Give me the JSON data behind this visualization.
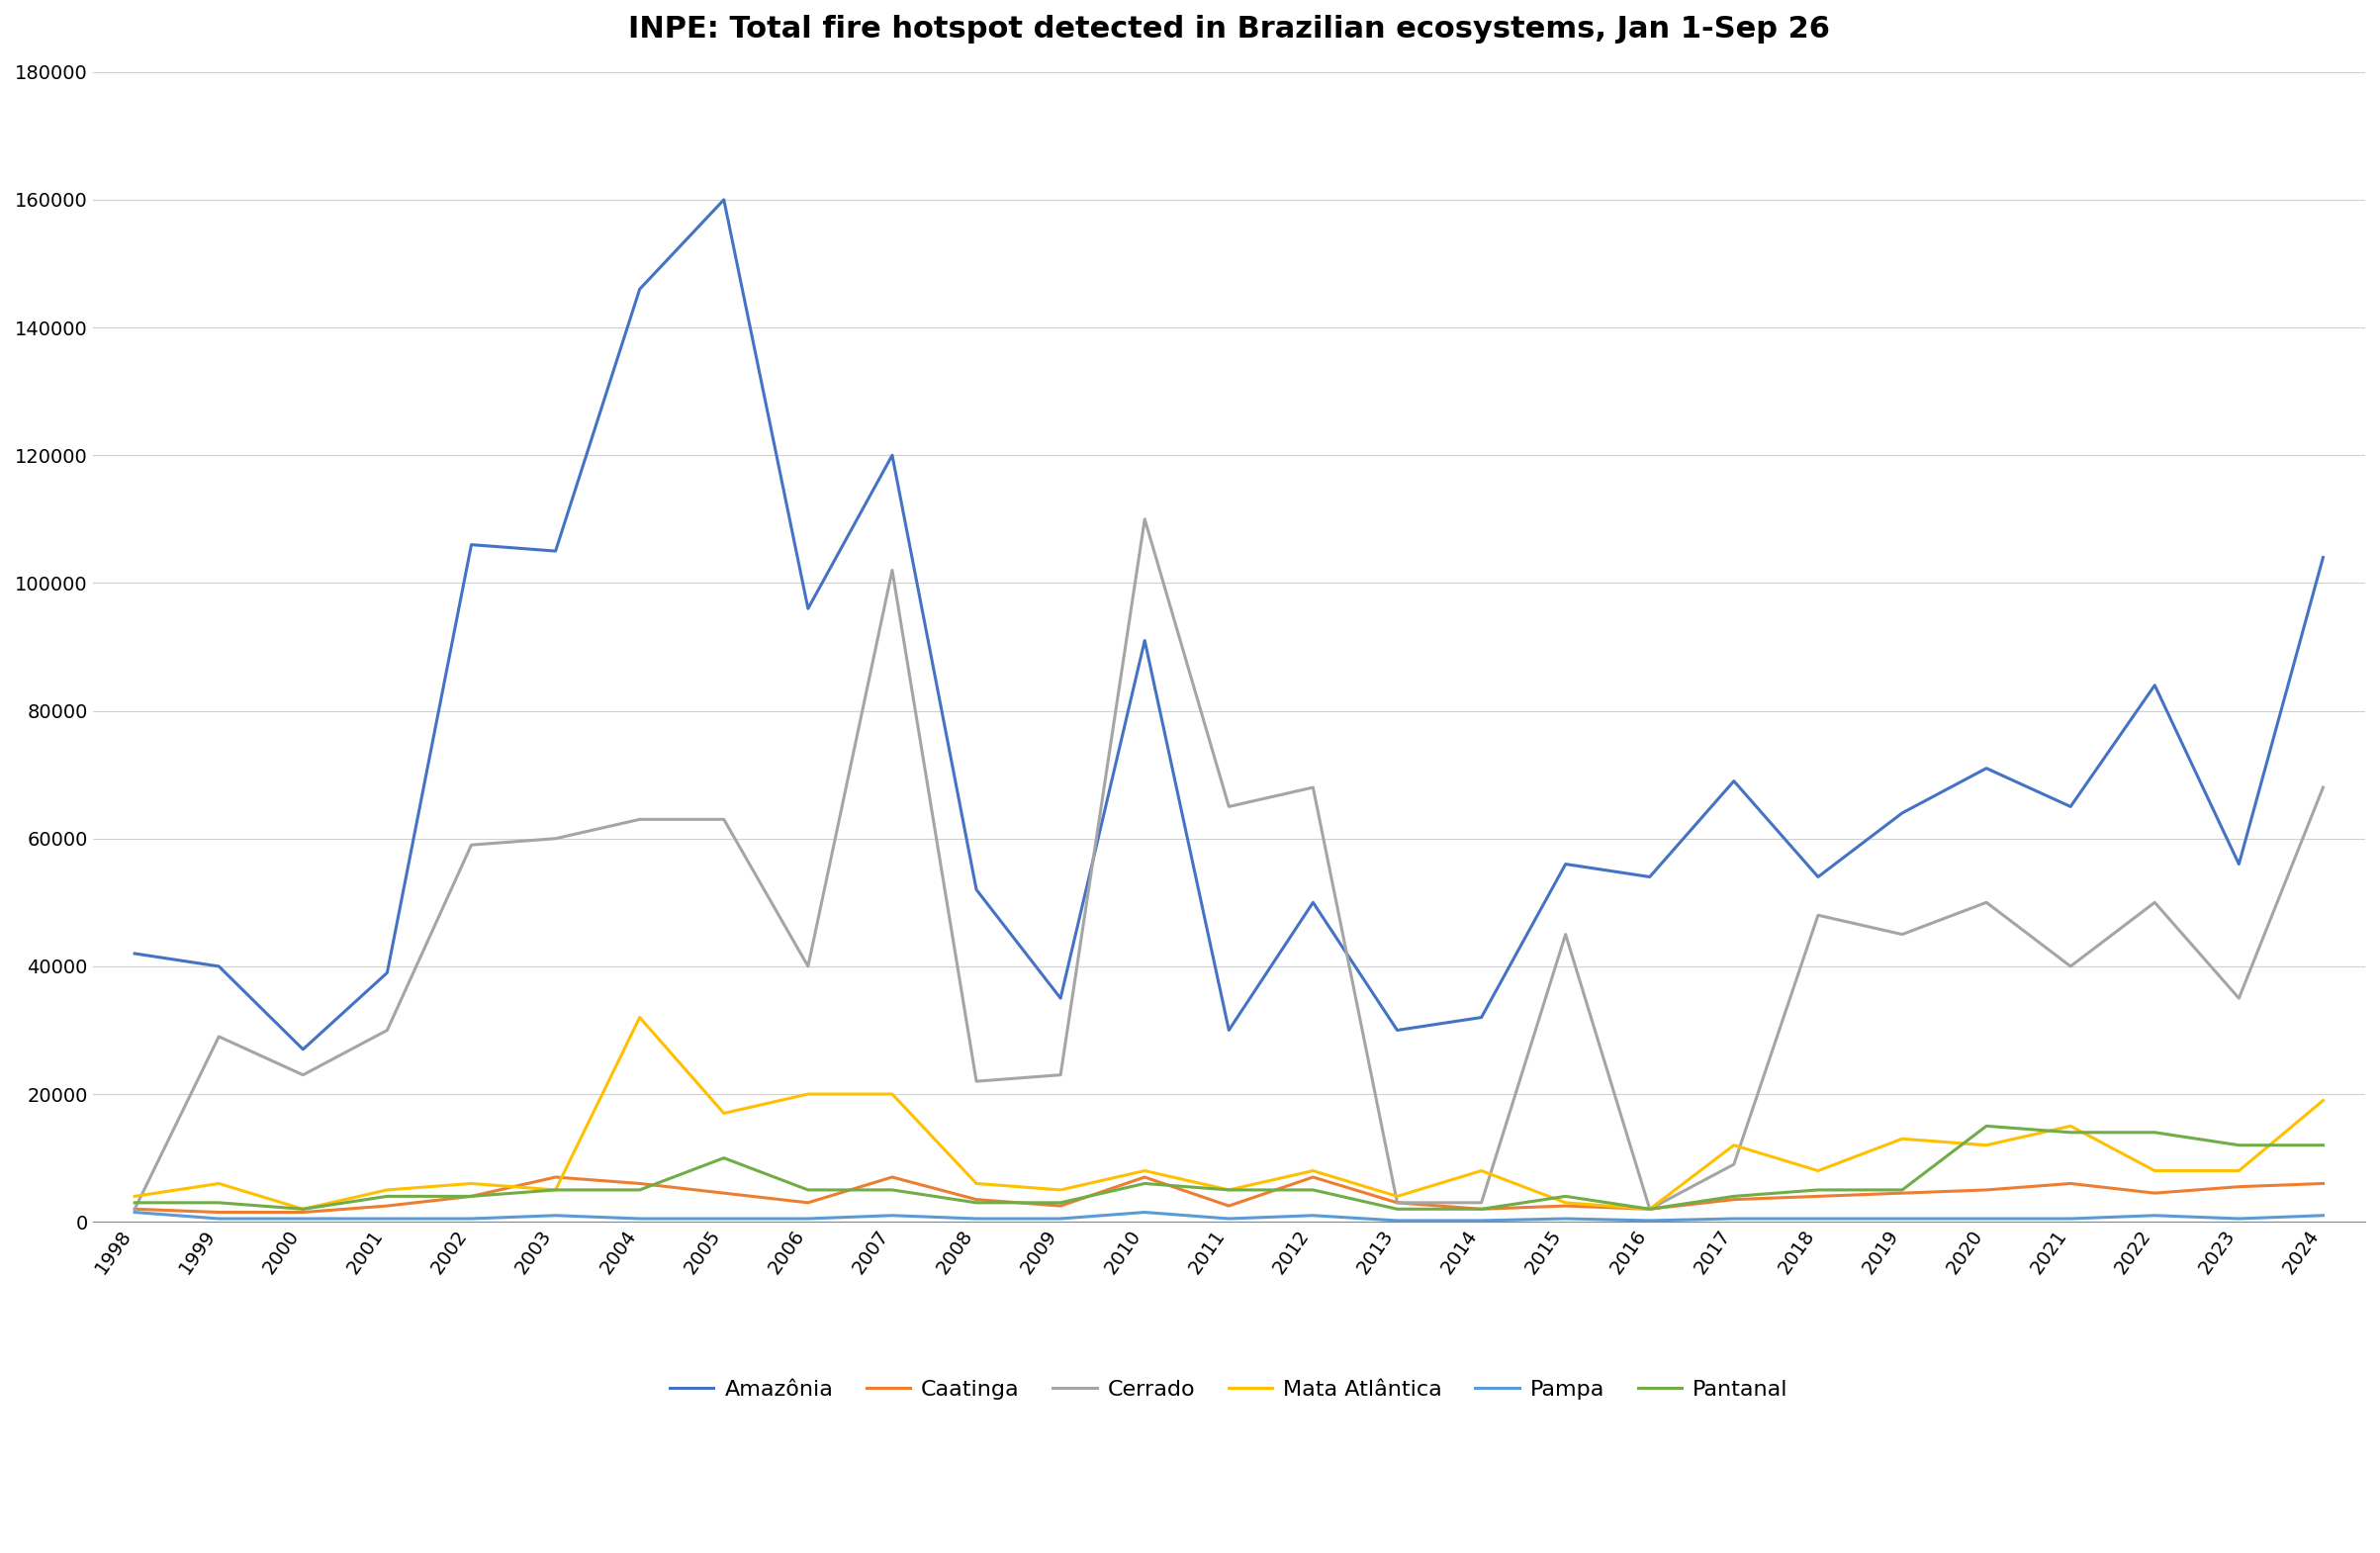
{
  "title": "INPE: Total fire hotspot detected in Brazilian ecosystems, Jan 1-Sep 26",
  "years": [
    1998,
    1999,
    2000,
    2001,
    2002,
    2003,
    2004,
    2005,
    2006,
    2007,
    2008,
    2009,
    2010,
    2011,
    2012,
    2013,
    2014,
    2015,
    2016,
    2017,
    2018,
    2019,
    2020,
    2021,
    2022,
    2023,
    2024
  ],
  "Amazonia": [
    42000,
    40000,
    27000,
    39000,
    106000,
    105000,
    146000,
    160000,
    96000,
    120000,
    52000,
    35000,
    91000,
    30000,
    50000,
    30000,
    32000,
    56000,
    54000,
    69000,
    54000,
    64000,
    71000,
    65000,
    84000,
    56000,
    104000
  ],
  "Caatinga": [
    2000,
    1500,
    1500,
    2500,
    4000,
    7000,
    6000,
    4500,
    3000,
    7000,
    3500,
    2500,
    7000,
    2500,
    7000,
    3000,
    2000,
    2500,
    2000,
    3500,
    4000,
    4500,
    5000,
    6000,
    4500,
    5500,
    6000
  ],
  "Cerrado": [
    2000,
    29000,
    23000,
    30000,
    59000,
    60000,
    63000,
    63000,
    40000,
    102000,
    22000,
    23000,
    110000,
    65000,
    68000,
    3000,
    3000,
    45000,
    2000,
    9000,
    48000,
    45000,
    50000,
    40000,
    50000,
    35000,
    68000
  ],
  "MataAtlantica": [
    4000,
    6000,
    2000,
    5000,
    6000,
    5000,
    32000,
    17000,
    20000,
    20000,
    6000,
    5000,
    8000,
    5000,
    8000,
    4000,
    8000,
    3000,
    2000,
    12000,
    8000,
    13000,
    12000,
    15000,
    8000,
    8000,
    19000
  ],
  "Pampa": [
    1500,
    500,
    500,
    500,
    500,
    1000,
    500,
    500,
    500,
    1000,
    500,
    500,
    1500,
    500,
    1000,
    200,
    200,
    500,
    200,
    500,
    500,
    500,
    500,
    500,
    1000,
    500,
    1000
  ],
  "Pantanal": [
    3000,
    3000,
    2000,
    4000,
    4000,
    5000,
    5000,
    10000,
    5000,
    5000,
    3000,
    3000,
    6000,
    5000,
    5000,
    2000,
    2000,
    4000,
    2000,
    4000,
    5000,
    5000,
    15000,
    14000,
    14000,
    12000,
    12000
  ],
  "colors": {
    "Amazonia": "#4472C4",
    "Caatinga": "#ED7D31",
    "Cerrado": "#A5A5A5",
    "MataAtlantica": "#FFC000",
    "Pampa": "#5B9BD5",
    "Pantanal": "#70AD47"
  },
  "ylim": [
    0,
    180000
  ],
  "yticks": [
    0,
    20000,
    40000,
    60000,
    80000,
    100000,
    120000,
    140000,
    160000,
    180000
  ],
  "title_fontsize": 22,
  "tick_fontsize": 14,
  "legend_fontsize": 16,
  "linewidth": 2.2
}
